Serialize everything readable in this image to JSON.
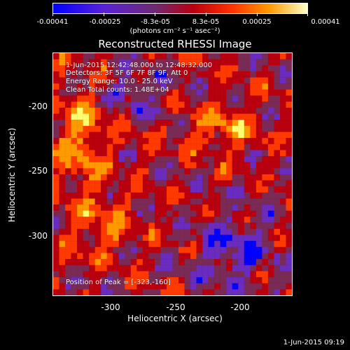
{
  "colorbar": {
    "ticks": [
      "-0.00041",
      "-0.00025",
      "-8.3e-05",
      "8.3e-05",
      "0.00025",
      "0.00041"
    ],
    "units": "(photons cm⁻² s⁻¹ asec⁻²)",
    "colors": [
      "#0000ff",
      "#6a2bbf",
      "#7a2b55",
      "#b8000f",
      "#ff3a00",
      "#ff9900",
      "#ffff70"
    ]
  },
  "title": "Reconstructed RHESSI Image",
  "annotations": {
    "time": "1-Jun-2015 12:42:48.000 to 12:48:32.000",
    "detectors": "Detectors: 3F 5F 6F 7F 8F 9F, Att 0",
    "energy": "Energy Range: 10.0 - 25.0 keV",
    "method": "Clean    Total counts: 1.48E+04",
    "peak": "Position of Peak = [-323,-160]"
  },
  "axes": {
    "xlabel": "Heliocentric X (arcsec)",
    "ylabel": "Heliocentric Y (arcsec)",
    "xticks": [
      "-300",
      "-250",
      "-200"
    ],
    "yticks": [
      "-200",
      "-250",
      "-300"
    ]
  },
  "datestamp": "1-Jun-2015 09:19"
}
